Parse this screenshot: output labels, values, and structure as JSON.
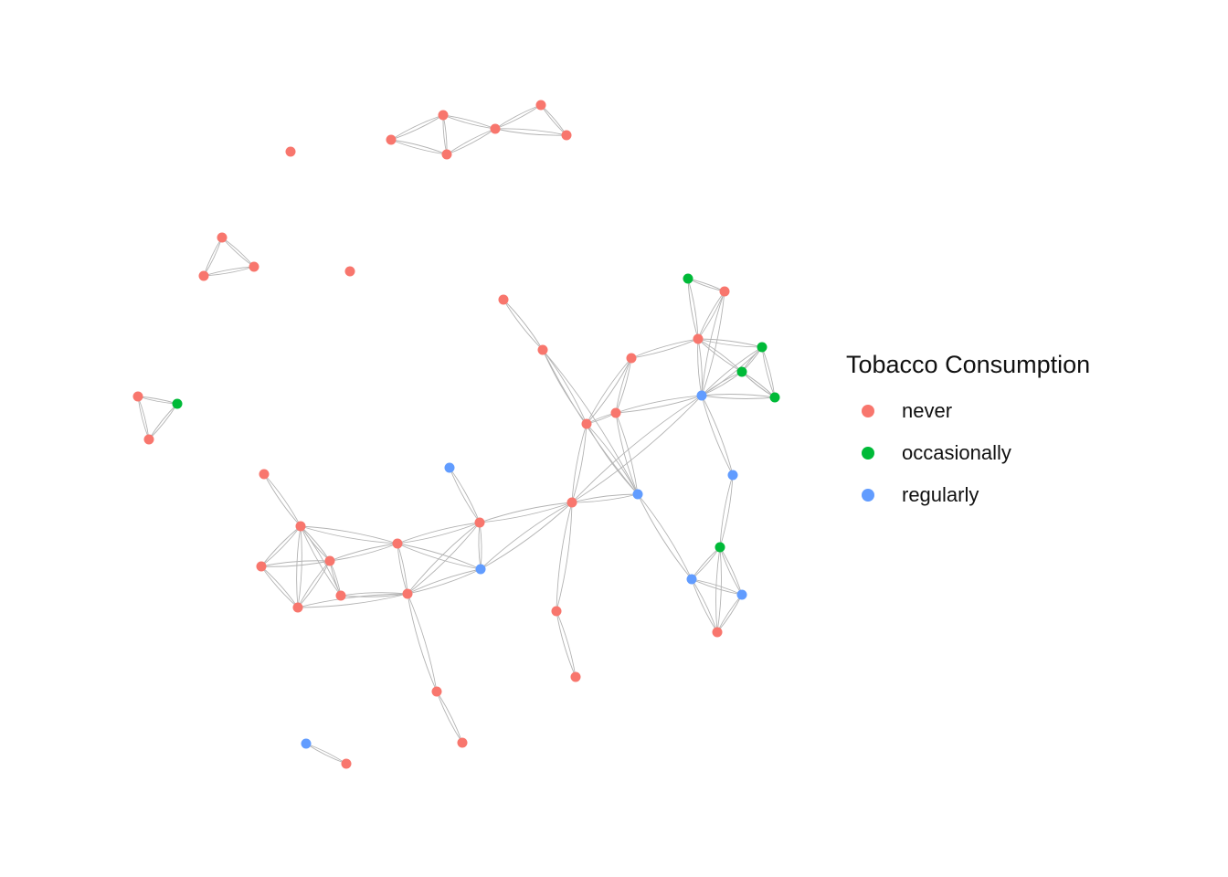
{
  "legend": {
    "title": "Tobacco Consumption",
    "items": [
      {
        "key": "never",
        "label": "never",
        "color": "#F8766D"
      },
      {
        "key": "occasionally",
        "label": "occasionally",
        "color": "#00BA38"
      },
      {
        "key": "regularly",
        "label": "regularly",
        "color": "#619CFF"
      }
    ]
  },
  "edge_color": "#b3b3b3",
  "nodes": [
    {
      "id": 1,
      "group": "never"
    },
    {
      "id": 2,
      "group": "never"
    },
    {
      "id": 3,
      "group": "never"
    },
    {
      "id": 4,
      "group": "never"
    },
    {
      "id": 5,
      "group": "never"
    },
    {
      "id": 6,
      "group": "never"
    },
    {
      "id": 7,
      "group": "never"
    },
    {
      "id": 8,
      "group": "never"
    },
    {
      "id": 9,
      "group": "never"
    },
    {
      "id": 10,
      "group": "never"
    },
    {
      "id": 11,
      "group": "never"
    },
    {
      "id": 12,
      "group": "never"
    },
    {
      "id": 13,
      "group": "occasionally"
    },
    {
      "id": 14,
      "group": "never"
    },
    {
      "id": 15,
      "group": "never"
    },
    {
      "id": 16,
      "group": "never"
    },
    {
      "id": 17,
      "group": "occasionally"
    },
    {
      "id": 18,
      "group": "never"
    },
    {
      "id": 19,
      "group": "never"
    },
    {
      "id": 20,
      "group": "never"
    },
    {
      "id": 21,
      "group": "never"
    },
    {
      "id": 22,
      "group": "never"
    },
    {
      "id": 23,
      "group": "occasionally"
    },
    {
      "id": 24,
      "group": "occasionally"
    },
    {
      "id": 25,
      "group": "regularly"
    },
    {
      "id": 26,
      "group": "never"
    },
    {
      "id": 27,
      "group": "never"
    },
    {
      "id": 28,
      "group": "never"
    },
    {
      "id": 29,
      "group": "regularly"
    },
    {
      "id": 30,
      "group": "regularly"
    },
    {
      "id": 31,
      "group": "never"
    },
    {
      "id": 32,
      "group": "never"
    },
    {
      "id": 33,
      "group": "never"
    },
    {
      "id": 34,
      "group": "regularly"
    },
    {
      "id": 35,
      "group": "never"
    },
    {
      "id": 36,
      "group": "never"
    },
    {
      "id": 37,
      "group": "never"
    },
    {
      "id": 38,
      "group": "never"
    },
    {
      "id": 39,
      "group": "never"
    },
    {
      "id": 40,
      "group": "never"
    },
    {
      "id": 41,
      "group": "never"
    },
    {
      "id": 42,
      "group": "never"
    },
    {
      "id": 43,
      "group": "never"
    },
    {
      "id": 44,
      "group": "never"
    },
    {
      "id": 45,
      "group": "occasionally"
    },
    {
      "id": 46,
      "group": "regularly"
    },
    {
      "id": 47,
      "group": "regularly"
    },
    {
      "id": 48,
      "group": "never"
    },
    {
      "id": 49,
      "group": "never"
    },
    {
      "id": 50,
      "group": "regularly"
    },
    {
      "id": 51,
      "group": "never"
    }
  ],
  "edges": [
    [
      2,
      3
    ],
    [
      2,
      4
    ],
    [
      3,
      4
    ],
    [
      3,
      5
    ],
    [
      4,
      5
    ],
    [
      5,
      6
    ],
    [
      5,
      7
    ],
    [
      6,
      7
    ],
    [
      8,
      9
    ],
    [
      8,
      10
    ],
    [
      9,
      10
    ],
    [
      12,
      13
    ],
    [
      12,
      14
    ],
    [
      13,
      14
    ],
    [
      15,
      16
    ],
    [
      16,
      21
    ],
    [
      17,
      18
    ],
    [
      18,
      24
    ],
    [
      18,
      19
    ],
    [
      18,
      23
    ],
    [
      18,
      25
    ],
    [
      19,
      23
    ],
    [
      19,
      25
    ],
    [
      20,
      21
    ],
    [
      20,
      22
    ],
    [
      20,
      25
    ],
    [
      20,
      27
    ],
    [
      21,
      22
    ],
    [
      21,
      30
    ],
    [
      22,
      25
    ],
    [
      22,
      29
    ],
    [
      23,
      24
    ],
    [
      24,
      25
    ],
    [
      25,
      29
    ],
    [
      25,
      30
    ],
    [
      26,
      28
    ],
    [
      27,
      28
    ],
    [
      27,
      30
    ],
    [
      27,
      29
    ],
    [
      27,
      37
    ],
    [
      28,
      29
    ],
    [
      28,
      33
    ],
    [
      28,
      32
    ],
    [
      28,
      34
    ],
    [
      28,
      37
    ],
    [
      29,
      34
    ],
    [
      29,
      33
    ],
    [
      29,
      37
    ],
    [
      30,
      31
    ],
    [
      30,
      45
    ],
    [
      31,
      32
    ],
    [
      32,
      34
    ],
    [
      32,
      40
    ],
    [
      33,
      41
    ],
    [
      33,
      42
    ],
    [
      35,
      36
    ],
    [
      35,
      38
    ],
    [
      35,
      39
    ],
    [
      35,
      40
    ],
    [
      35,
      41
    ],
    [
      36,
      38
    ],
    [
      36,
      39
    ],
    [
      36,
      41
    ],
    [
      36,
      40
    ],
    [
      37,
      42
    ],
    [
      38,
      39
    ],
    [
      38,
      40
    ],
    [
      38,
      41
    ],
    [
      39,
      40
    ],
    [
      40,
      41
    ],
    [
      41,
      42
    ],
    [
      41,
      43
    ],
    [
      42,
      44
    ],
    [
      42,
      45
    ],
    [
      44,
      48
    ],
    [
      45,
      46
    ],
    [
      45,
      47
    ],
    [
      46,
      47
    ],
    [
      45,
      50
    ],
    [
      46,
      50
    ],
    [
      47,
      49
    ],
    [
      48,
      51
    ],
    [
      50,
      51
    ]
  ]
}
